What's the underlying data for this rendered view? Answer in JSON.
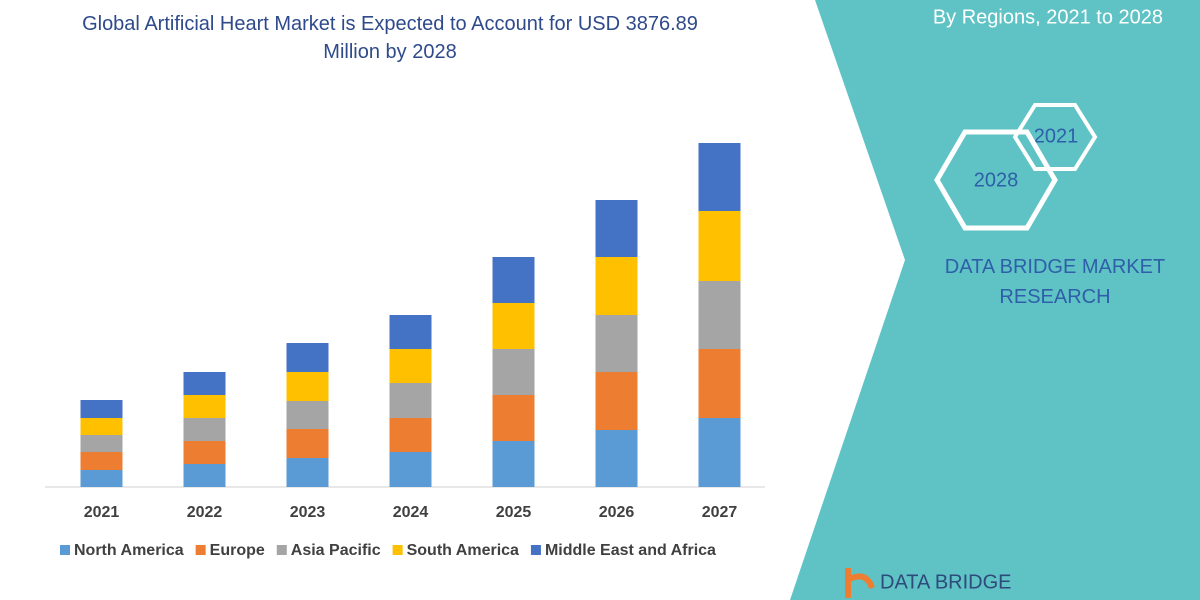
{
  "chart_data": {
    "type": "stacked_bar",
    "title": "Global Artificial Heart Market is Expected to Account for USD 3876.89 Million by 2028",
    "categories": [
      "2021",
      "2022",
      "2023",
      "2024",
      "2025",
      "2026",
      "2027"
    ],
    "series": [
      {
        "name": "North America",
        "color": "#5b9bd5",
        "values": [
          17,
          23,
          29,
          35,
          46,
          57,
          69
        ]
      },
      {
        "name": "Europe",
        "color": "#ed7d31",
        "values": [
          18,
          23,
          29,
          34,
          46,
          58,
          69
        ]
      },
      {
        "name": "Asia Pacific",
        "color": "#a5a5a5",
        "values": [
          17,
          23,
          28,
          35,
          46,
          57,
          68
        ]
      },
      {
        "name": "South America",
        "color": "#ffc000",
        "values": [
          17,
          23,
          29,
          34,
          46,
          58,
          70
        ]
      },
      {
        "name": "Middle East and Africa",
        "color": "#4472c4",
        "values": [
          18,
          23,
          29,
          34,
          46,
          57,
          68
        ]
      }
    ],
    "legend": "bottom"
  },
  "panel": {
    "subtitle": "By Regions, 2021 to 2028",
    "hex_small": "2021",
    "hex_large": "2028",
    "brand": "DATA BRIDGE MARKET RESEARCH",
    "logo": "DATA BRIDGE"
  }
}
